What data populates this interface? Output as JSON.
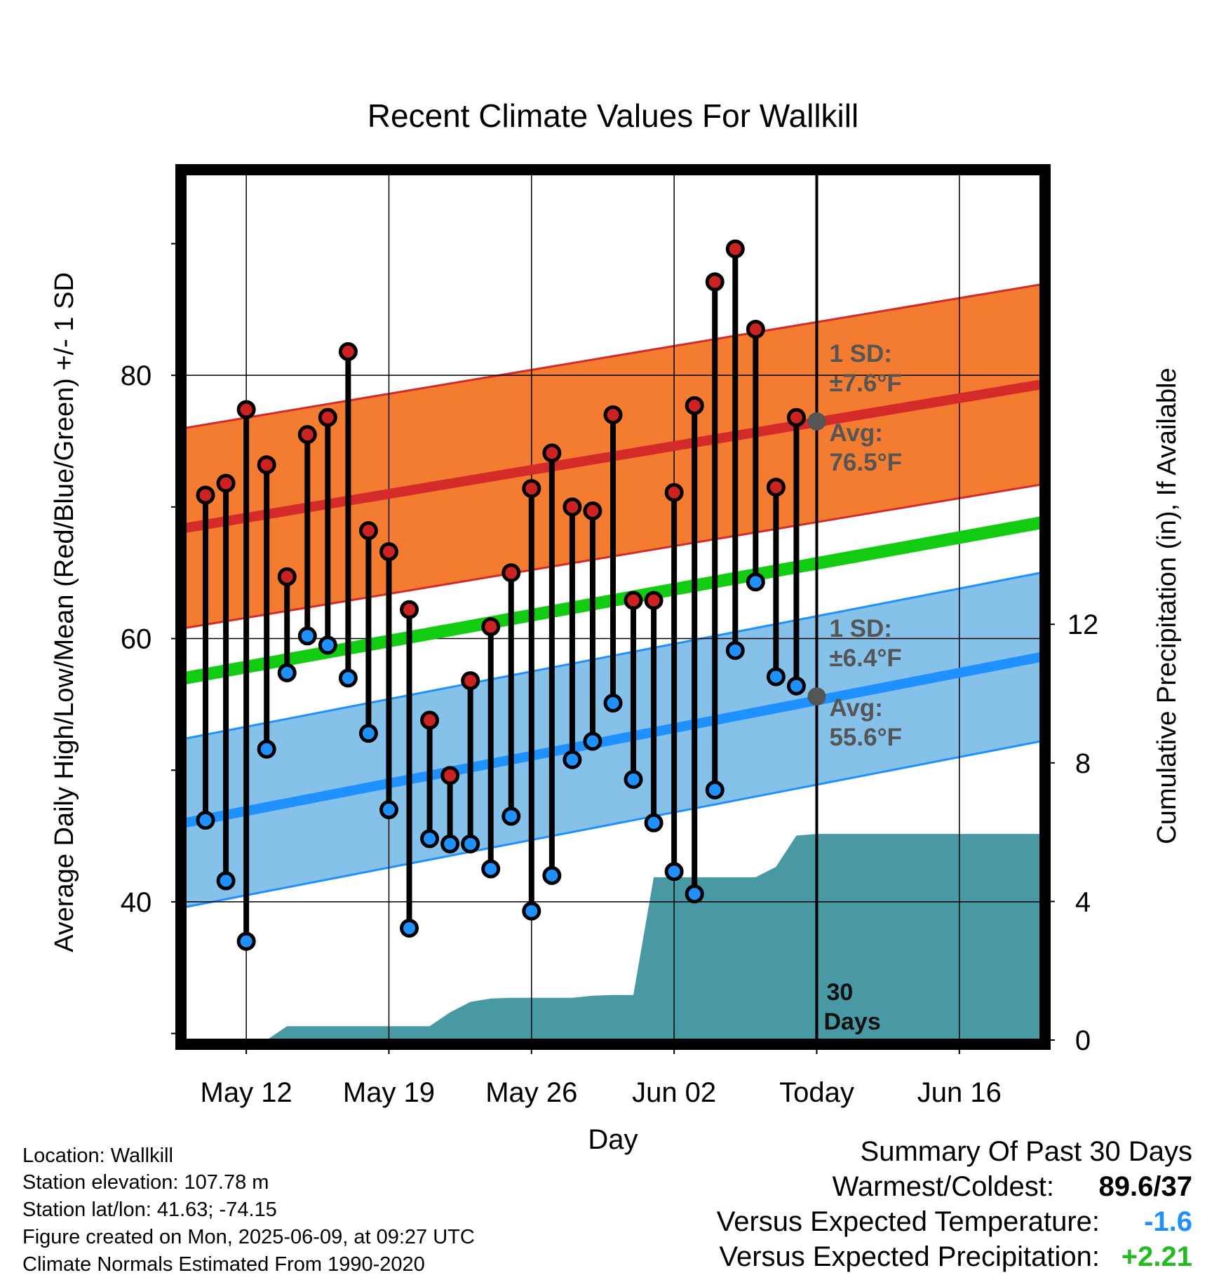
{
  "chart_data": {
    "type": "line",
    "title": "Recent Climate Values For Wallkill",
    "xlabel": "Day",
    "ylabel": "Average Daily High/Low/Mean (Red/Blue/Green) +/- 1 SD",
    "y2label": "Cumulative Precipitation (in), If Available",
    "x_axis": {
      "start": "May 09",
      "end": "Jun 20",
      "ticks": [
        {
          "date": "May 12",
          "label": "May 12"
        },
        {
          "date": "May 19",
          "label": "May 19"
        },
        {
          "date": "May 26",
          "label": "May 26"
        },
        {
          "date": "Jun 02",
          "label": "Jun 02"
        },
        {
          "date": "Jun 09",
          "label": "Today"
        },
        {
          "date": "Jun 16",
          "label": "Jun 16"
        }
      ]
    },
    "y_axis": {
      "ylim": [
        29.5,
        95.3
      ],
      "ticks": [
        40,
        60,
        80
      ],
      "minor_ticks": [
        30,
        50,
        70,
        90
      ]
    },
    "y2_axis": {
      "ylim": [
        0,
        25
      ],
      "ticks": [
        0,
        4,
        8,
        12
      ]
    },
    "grid": true,
    "today": "Jun 09",
    "dates": [
      "May 10",
      "May 11",
      "May 12",
      "May 13",
      "May 14",
      "May 15",
      "May 16",
      "May 17",
      "May 18",
      "May 19",
      "May 20",
      "May 21",
      "May 22",
      "May 23",
      "May 24",
      "May 25",
      "May 26",
      "May 27",
      "May 28",
      "May 29",
      "May 30",
      "May 31",
      "Jun 01",
      "Jun 02",
      "Jun 03",
      "Jun 04",
      "Jun 05",
      "Jun 06",
      "Jun 07",
      "Jun 08"
    ],
    "series": [
      {
        "name": "High",
        "color": "#cc2222",
        "values": [
          70.9,
          71.8,
          77.4,
          73.2,
          64.7,
          75.5,
          76.8,
          81.8,
          68.2,
          66.6,
          62.2,
          53.8,
          49.6,
          56.8,
          60.9,
          65.0,
          71.4,
          74.1,
          70.0,
          69.7,
          77.0,
          62.9,
          62.9,
          71.1,
          77.7,
          87.1,
          89.6,
          83.5,
          71.5,
          76.8
        ]
      },
      {
        "name": "Low",
        "color": "#1e90ff",
        "values": [
          46.2,
          41.6,
          37.0,
          51.6,
          57.4,
          60.2,
          59.5,
          57.0,
          52.8,
          47.0,
          38.0,
          44.8,
          44.4,
          44.4,
          42.5,
          46.5,
          39.3,
          42.0,
          50.8,
          52.2,
          55.1,
          49.3,
          46.0,
          42.3,
          40.6,
          48.5,
          59.1,
          64.3,
          57.1,
          56.4
        ]
      }
    ],
    "normals": {
      "high_avg_today": 76.5,
      "high_sd": 7.6,
      "low_avg_today": 55.6,
      "low_sd": 6.4,
      "high_start": 68.4,
      "high_end": 79.3,
      "mean_start": 57.0,
      "mean_end": 68.8,
      "low_start": 46.0,
      "low_end": 58.6,
      "colors": {
        "high_band": "#f47c30",
        "high_line": "#d42a2a",
        "low_band": "#85c1e9",
        "low_line": "#1e90ff",
        "mean_line": "#11cc11"
      }
    },
    "precipitation": {
      "color": "#4899a3",
      "dates": [
        "May 09",
        "May 10",
        "May 11",
        "May 12",
        "May 13",
        "May 14",
        "May 15",
        "May 16",
        "May 17",
        "May 18",
        "May 19",
        "May 20",
        "May 21",
        "May 22",
        "May 23",
        "May 24",
        "May 25",
        "May 26",
        "May 27",
        "May 28",
        "May 29",
        "May 30",
        "May 31",
        "Jun 01",
        "Jun 02",
        "Jun 03",
        "Jun 04",
        "Jun 05",
        "Jun 06",
        "Jun 07",
        "Jun 08",
        "Jun 09",
        "Jun 20"
      ],
      "values": [
        0,
        0,
        0,
        0,
        0,
        0.4,
        0.4,
        0.4,
        0.4,
        0.4,
        0.4,
        0.4,
        0.4,
        0.8,
        1.1,
        1.2,
        1.22,
        1.22,
        1.22,
        1.22,
        1.28,
        1.3,
        1.3,
        4.7,
        4.7,
        4.7,
        4.7,
        4.7,
        4.7,
        5.0,
        5.9,
        5.95,
        5.95
      ]
    },
    "annotations": {
      "high_sd": {
        "line1": "1 SD:",
        "line2": "±7.6°F"
      },
      "high_avg": {
        "line1": "Avg:",
        "line2": "76.5°F"
      },
      "low_sd": {
        "line1": "1 SD:",
        "line2": "±6.4°F"
      },
      "low_avg": {
        "line1": "Avg:",
        "line2": "55.6°F"
      },
      "days": {
        "line1": "30",
        "line2": "Days"
      }
    }
  },
  "info": {
    "location": "Location: Wallkill",
    "elevation": "Station elevation: 107.78 m",
    "latlon": "Station lat/lon: 41.63; -74.15",
    "created": "Figure created on Mon, 2025-06-09, at 09:27 UTC",
    "normals": "Climate Normals Estimated From 1990-2020"
  },
  "summary": {
    "title": "Summary Of Past 30 Days",
    "warmest_label": "Warmest/Coldest:",
    "warmest_value": "89.6/37",
    "temp_label": "Versus Expected Temperature:",
    "temp_value": "-1.6",
    "temp_color": "#1e90ff",
    "precip_label": "Versus Expected Precipitation:",
    "precip_value": "+2.21",
    "precip_color": "#22bb22"
  }
}
